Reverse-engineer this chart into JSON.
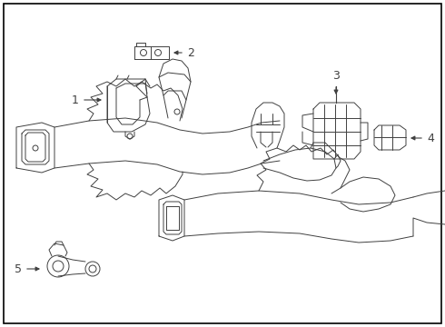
{
  "background_color": "#ffffff",
  "border_color": "#000000",
  "line_color": "#404040",
  "label_color": "#000000",
  "figsize": [
    4.9,
    3.6
  ],
  "dpi": 100,
  "lw": 0.7
}
